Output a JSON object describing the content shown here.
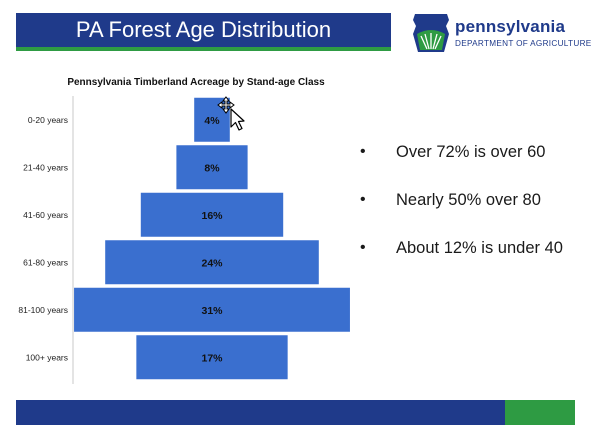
{
  "slide": {
    "title": "PA Forest Age Distribution",
    "logo": {
      "name": "pennsylvania",
      "department": "DEPARTMENT OF AGRICULTURE"
    },
    "bullets": [
      "Over 72% is over 60",
      "Nearly 50% over 80",
      "About 12% is under 40"
    ],
    "colors": {
      "title_bg": "#1f3a8a",
      "accent_green": "#2e9b43",
      "bar": "#3a6fcf"
    }
  },
  "chart_data": {
    "type": "bar",
    "orientation": "horizontal-centered",
    "title": "Pennsylvania Timberland Acreage by Stand-age Class",
    "categories": [
      "0-20 years",
      "21-40 years",
      "41-60 years",
      "61-80 years",
      "81-100 years",
      "100+ years"
    ],
    "values": [
      4,
      8,
      16,
      24,
      31,
      17
    ],
    "value_labels": [
      "4%",
      "8%",
      "16%",
      "24%",
      "31%",
      "17%"
    ],
    "units": "%",
    "grid": false,
    "legend": "none"
  }
}
